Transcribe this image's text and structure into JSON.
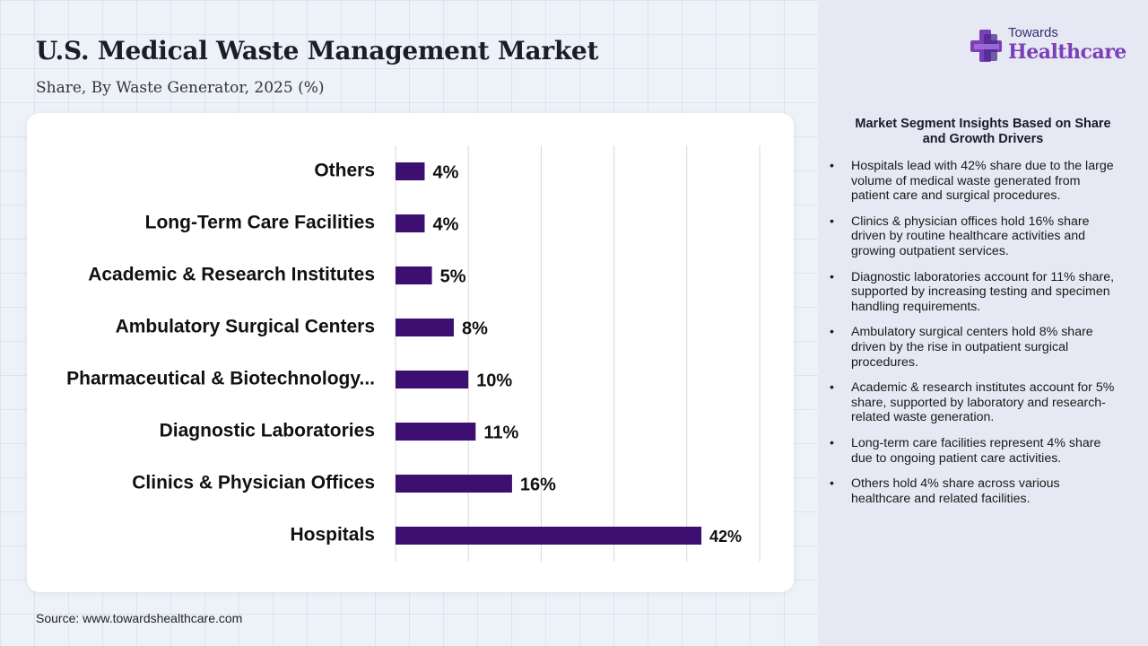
{
  "header": {
    "title": "U.S. Medical Waste Management Market",
    "subtitle": "Share, By Waste Generator, 2025 (%)"
  },
  "source": "Source: www.towardshealthcare.com",
  "logo": {
    "line1": "Towards",
    "line2": "Healthcare"
  },
  "insights": {
    "title": "Market Segment Insights Based on Share and Growth Drivers",
    "bullet_symbol": "•",
    "items": [
      "Hospitals lead with 42% share due to the large volume of medical waste generated from patient care and surgical procedures.",
      "Clinics & physician offices hold 16% share driven by routine healthcare activities and growing outpatient services.",
      "Diagnostic laboratories account for 11% share, supported by increasing testing and specimen handling requirements.",
      "Ambulatory surgical centers hold 8% share driven by the rise in outpatient surgical procedures.",
      "Academic & research institutes account for 5% share, supported by laboratory and research-related waste generation.",
      "Long-term care facilities represent 4% share due to ongoing patient care activities.",
      "Others hold 4% share across various healthcare and related facilities."
    ]
  },
  "chart_data": {
    "type": "bar",
    "orientation": "horizontal",
    "categories": [
      "Others",
      "Long-Term Care Facilities",
      "Academic & Research Institutes",
      "Ambulatory Surgical Centers",
      "Pharmaceutical & Biotechnology...",
      "Diagnostic Laboratories",
      "Clinics & Physician Offices",
      "Hospitals"
    ],
    "values": [
      4,
      4,
      5,
      8,
      10,
      11,
      16,
      42
    ],
    "value_labels": [
      "4%",
      "4%",
      "5%",
      "8%",
      "10%",
      "11%",
      "16%",
      "42%"
    ],
    "xlim": [
      0,
      50
    ],
    "grid": "vertical",
    "bar_color": "#3d0f70",
    "colors": {
      "title_text": "#1c1c2a",
      "gridline": "#d8d8d8",
      "logo_purple": "#7b3fb6",
      "logo_dark": "#3a2a70"
    }
  }
}
